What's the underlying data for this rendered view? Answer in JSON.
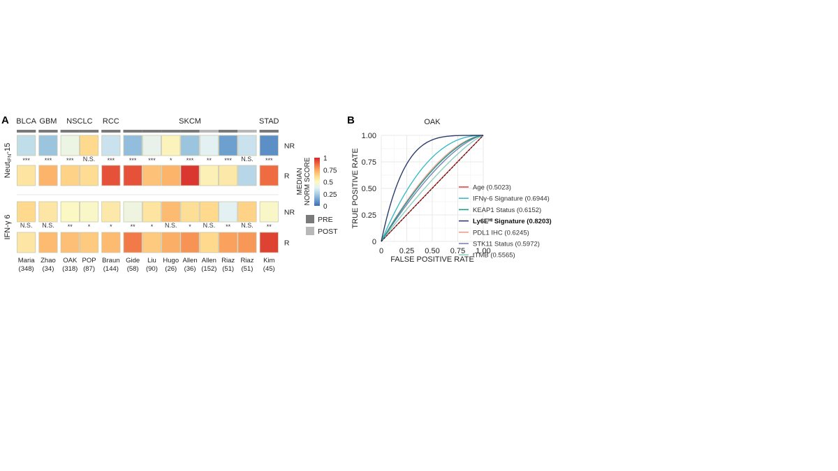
{
  "panels": {
    "a_label": "A",
    "b_label": "B"
  },
  "chart_data": [
    {
      "type": "heatmap",
      "panel": "A",
      "groups": [
        {
          "name": "BLCA",
          "count": 1
        },
        {
          "name": "GBM",
          "count": 1
        },
        {
          "name": "NSCLC",
          "count": 2
        },
        {
          "name": "RCC",
          "count": 1
        },
        {
          "name": "SKCM",
          "count": 7
        },
        {
          "name": "STAD",
          "count": 1
        }
      ],
      "studies": [
        {
          "name": "Maria",
          "n": "(348)",
          "timepoint": "PRE"
        },
        {
          "name": "Zhao",
          "n": "(34)",
          "timepoint": "PRE"
        },
        {
          "name": "OAK",
          "n": "(318)",
          "timepoint": "PRE"
        },
        {
          "name": "POP",
          "n": "(87)",
          "timepoint": "PRE"
        },
        {
          "name": "Braun",
          "n": "(144)",
          "timepoint": "PRE"
        },
        {
          "name": "Gide",
          "n": "(58)",
          "timepoint": "PRE"
        },
        {
          "name": "Liu",
          "n": "(90)",
          "timepoint": "PRE"
        },
        {
          "name": "Hugo",
          "n": "(26)",
          "timepoint": "PRE"
        },
        {
          "name": "Allen",
          "n": "(36)",
          "timepoint": "PRE"
        },
        {
          "name": "Allen",
          "n": "(152)",
          "timepoint": "POST"
        },
        {
          "name": "Riaz",
          "n": "(51)",
          "timepoint": "PRE"
        },
        {
          "name": "Riaz",
          "n": "(51)",
          "timepoint": "POST"
        },
        {
          "name": "Kim",
          "n": "(45)",
          "timepoint": "PRE"
        }
      ],
      "signatures": [
        {
          "name": "Neut",
          "name_sub": "IFN",
          "name_suffix": "-15",
          "NR": [
            0.3,
            0.22,
            0.42,
            0.62,
            0.32,
            0.2,
            0.4,
            0.52,
            0.22,
            0.38,
            0.12,
            0.32,
            0.08
          ],
          "significance": [
            "***",
            "***",
            "***",
            "N.S.",
            "***",
            "***",
            "***",
            "*",
            "***",
            "**",
            "***",
            "N.S.",
            "***"
          ],
          "R": [
            0.58,
            0.72,
            0.64,
            0.61,
            0.92,
            0.92,
            0.68,
            0.72,
            0.97,
            0.53,
            0.56,
            0.28,
            0.87
          ]
        },
        {
          "name": "IFN-γ 6",
          "name_sub": "",
          "name_suffix": "",
          "NR": [
            0.62,
            0.57,
            0.5,
            0.49,
            0.56,
            0.43,
            0.58,
            0.7,
            0.6,
            0.62,
            0.38,
            0.64,
            0.49
          ],
          "significance": [
            "N.S.",
            "N.S.",
            "**",
            "*",
            "*",
            "**",
            "*",
            "N.S.",
            "*",
            "N.S.",
            "**",
            "N.S.",
            "**"
          ],
          "R": [
            0.57,
            0.7,
            0.69,
            0.66,
            0.7,
            0.84,
            0.66,
            0.73,
            0.79,
            0.62,
            0.76,
            0.78,
            0.95
          ]
        }
      ],
      "row_labels": [
        "NR",
        "R"
      ],
      "colorbar": {
        "title_line1": "MEDIAN",
        "title_line2": "NORM SCORE",
        "ticks": [
          {
            "v": 1,
            "label": "1"
          },
          {
            "v": 0.75,
            "label": "0.75"
          },
          {
            "v": 0.5,
            "label": "0.5"
          },
          {
            "v": 0.25,
            "label": "0.25"
          },
          {
            "v": 0,
            "label": "0"
          }
        ],
        "range": [
          0,
          1
        ],
        "colors": [
          "#3b6eb4",
          "#6fa2cf",
          "#a9cfe4",
          "#e3f1f4",
          "#fbf8c4",
          "#fed88c",
          "#fba75f",
          "#ee6841",
          "#d4282a"
        ]
      },
      "timepoint_legend": [
        {
          "label": "PRE",
          "color": "#7a7a7a"
        },
        {
          "label": "POST",
          "color": "#b8b8b8"
        }
      ]
    },
    {
      "type": "line",
      "panel": "B",
      "title": "OAK",
      "xlabel": "FALSE POSITIVE RATE",
      "ylabel": "TRUE POSITIVE RATE",
      "xlim": [
        0,
        1
      ],
      "ylim": [
        0,
        1
      ],
      "xticks": [
        {
          "v": 0,
          "label": "0"
        },
        {
          "v": 0.25,
          "label": "0.25"
        },
        {
          "v": 0.5,
          "label": "0.50"
        },
        {
          "v": 0.75,
          "label": "0.75"
        },
        {
          "v": 1,
          "label": "1.00"
        }
      ],
      "yticks": [
        {
          "v": 0,
          "label": "0"
        },
        {
          "v": 0.25,
          "label": "0.25"
        },
        {
          "v": 0.5,
          "label": "0.50"
        },
        {
          "v": 0.75,
          "label": "0.75"
        },
        {
          "v": 1,
          "label": "1.00"
        }
      ],
      "grid": true,
      "legend_position": "right",
      "diagonal_reference": true,
      "series": [
        {
          "name": "Age (0.5023)",
          "auc": 0.5023,
          "color": "#e8433f",
          "bold": false
        },
        {
          "name": "IFNγ-6 Signature (0.6944)",
          "auc": 0.6944,
          "color": "#3bbcc4",
          "bold": false
        },
        {
          "name": "KEAP1 Status (0.6152)",
          "auc": 0.6152,
          "color": "#1a9a8a",
          "bold": false
        },
        {
          "name": "Ly6Eᴴᴵ Signature (0.8203)",
          "auc": 0.8203,
          "color": "#2e3c6c",
          "bold": true
        },
        {
          "name": "PDL1 IHC (0.6245)",
          "auc": 0.6245,
          "color": "#f09a8e",
          "bold": false
        },
        {
          "name": "STK11 Status (0.5972)",
          "auc": 0.5972,
          "color": "#7a84b2",
          "bold": false
        },
        {
          "name": "tTMB (0.5565)",
          "auc": 0.5565,
          "color": "#8fd0c0",
          "bold": false
        }
      ]
    }
  ]
}
